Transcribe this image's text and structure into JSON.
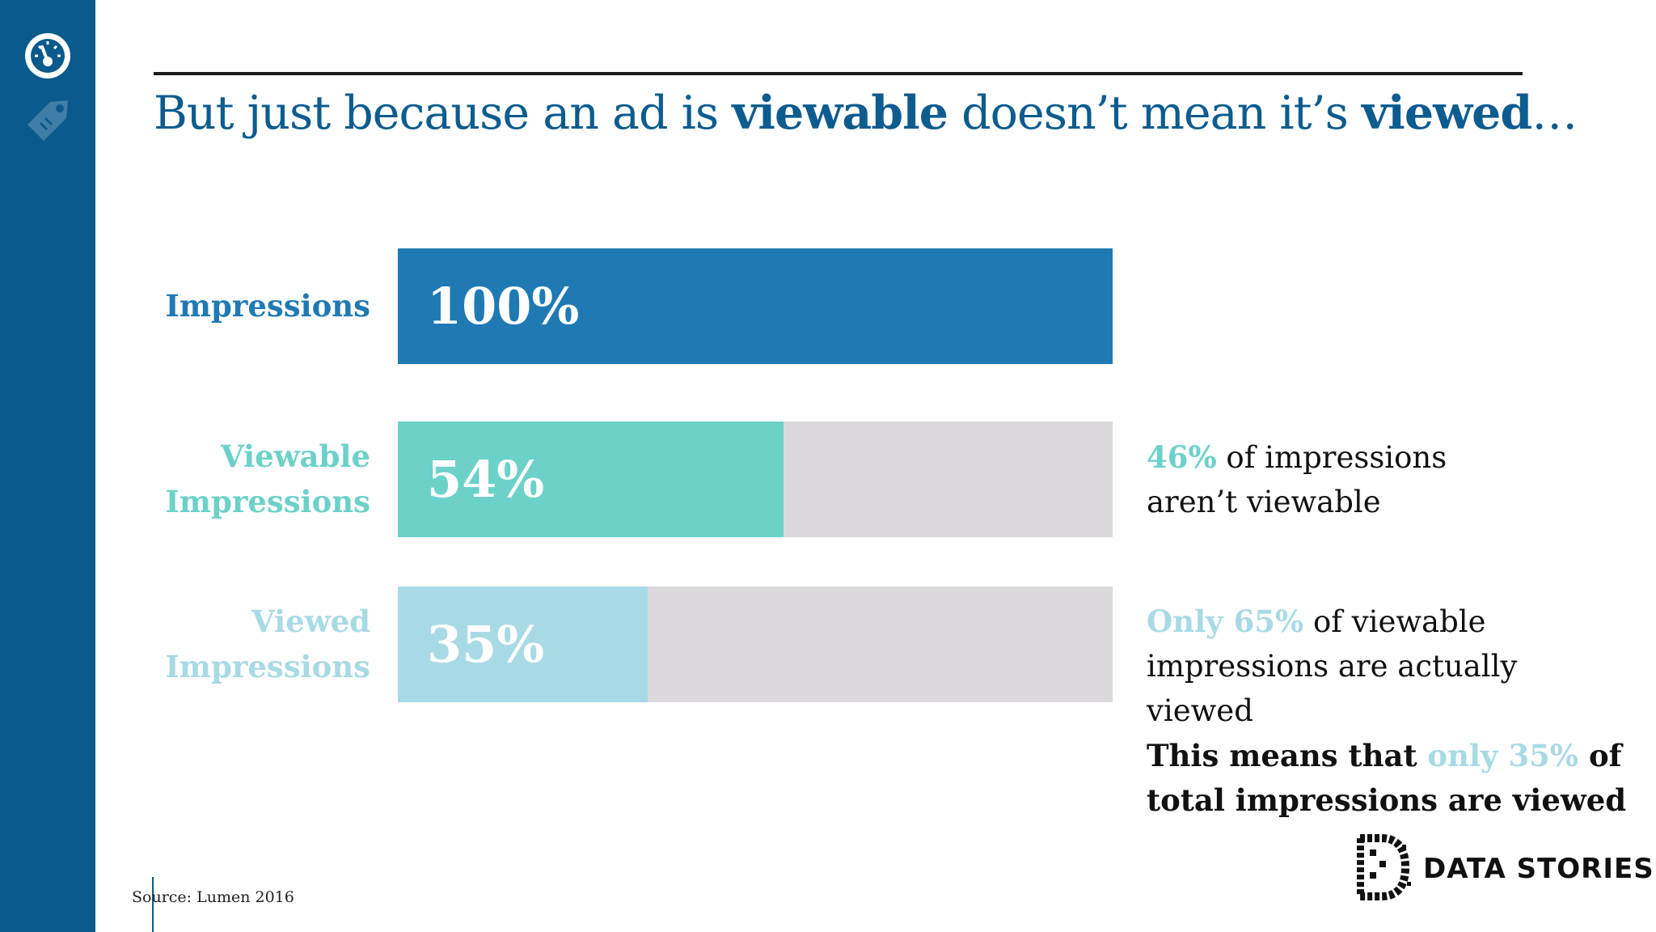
{
  "sidebar": {
    "icons": [
      "speedometer-icon",
      "price-tag-icon"
    ],
    "color": "#0a5a8c"
  },
  "headline": {
    "part1": "But just because an ad is ",
    "bold1": "viewable",
    "part2": " doesn’t mean it’s ",
    "bold2": "viewed",
    "part3": "…"
  },
  "colors": {
    "headline": "#0d5c8f",
    "impressions": "#1f7ab4",
    "viewable": "#6cd1c9",
    "viewed": "#a8dae6",
    "remainder": "#dcd9dd"
  },
  "chart_data": {
    "type": "bar",
    "orientation": "horizontal",
    "categories": [
      "Impressions",
      "Viewable Impressions",
      "Viewed Impressions"
    ],
    "category_lines": [
      [
        "Impressions"
      ],
      [
        "Viewable",
        "Impressions"
      ],
      [
        "Viewed",
        "Impressions"
      ]
    ],
    "values": [
      100,
      54,
      35
    ],
    "value_labels": [
      "100%",
      "54%",
      "35%"
    ],
    "unit": "%",
    "xlim": [
      0,
      100
    ],
    "grid": false,
    "legend": "none"
  },
  "notes": {
    "viewable": {
      "accent": "46%",
      "text1": " of impressions",
      "text2": "aren’t viewable"
    },
    "viewed": {
      "accent": "Only 65%",
      "text1": " of viewable",
      "text2": "impressions are actually viewed"
    },
    "conclusion": {
      "text1": "This means that ",
      "accent": "only 35%",
      "text2": " of",
      "text3": "total impressions are viewed"
    }
  },
  "source": "Source: Lumen 2016",
  "logo": {
    "text": "DATA STORIES"
  }
}
